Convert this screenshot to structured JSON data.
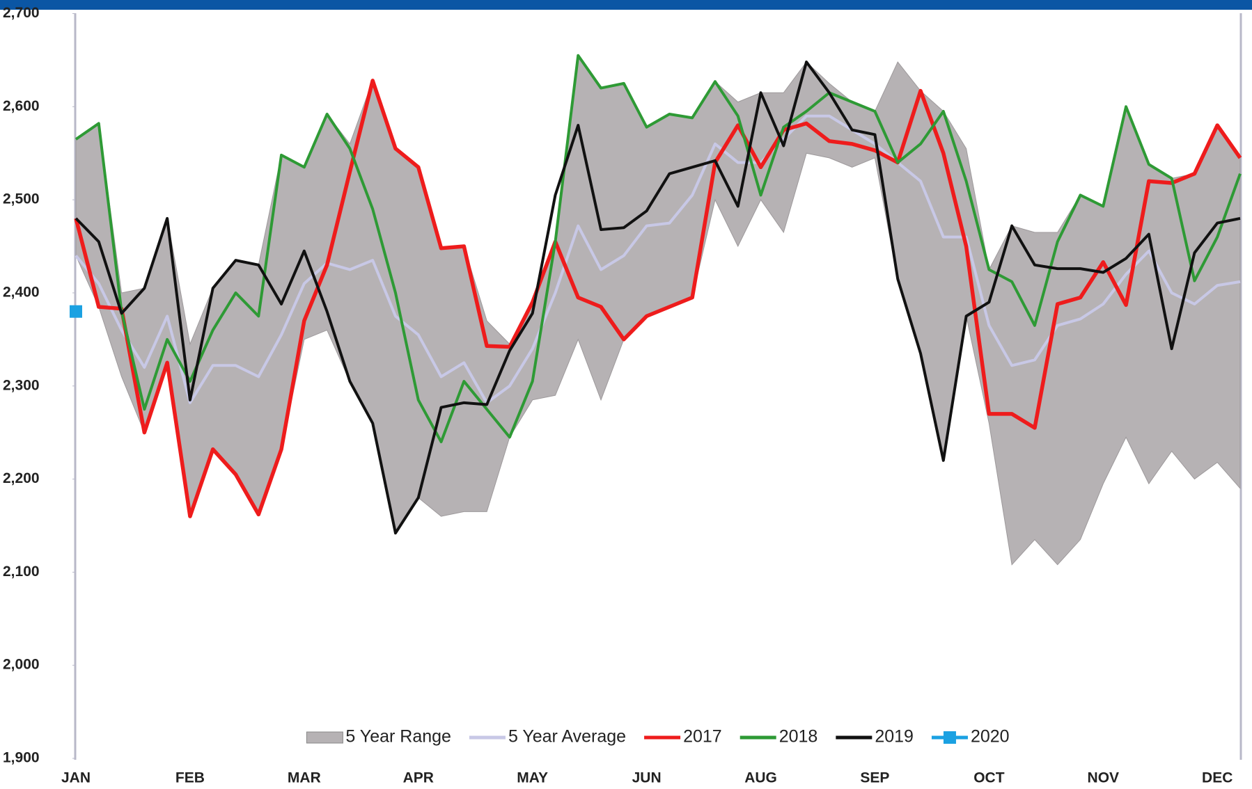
{
  "chart_data": {
    "type": "line",
    "categories": [
      "JAN",
      null,
      null,
      null,
      null,
      "FEB",
      null,
      null,
      null,
      null,
      "MAR",
      null,
      null,
      null,
      null,
      "APR",
      null,
      null,
      null,
      null,
      "MAY",
      null,
      null,
      null,
      null,
      "JUN",
      null,
      null,
      null,
      null,
      "AUG",
      null,
      null,
      null,
      null,
      "SEP",
      null,
      null,
      null,
      null,
      "OCT",
      null,
      null,
      null,
      null,
      "NOV",
      null,
      null,
      null,
      null,
      "DEC",
      null
    ],
    "ylim": [
      1900,
      2700
    ],
    "yticks": [
      {
        "value": 1900,
        "label": "1,900"
      },
      {
        "value": 2000,
        "label": "2,000"
      },
      {
        "value": 2100,
        "label": "2,100"
      },
      {
        "value": 2200,
        "label": "2,200"
      },
      {
        "value": 2300,
        "label": "2,300"
      },
      {
        "value": 2400,
        "label": "2,400"
      },
      {
        "value": 2500,
        "label": "2,500"
      },
      {
        "value": 2600,
        "label": "2,600"
      },
      {
        "value": 2700,
        "label": "2,700"
      }
    ],
    "grid": false,
    "legend": "bottom",
    "series": [
      {
        "name": "5 Year Range",
        "color": "#b6b2b4",
        "type": "range",
        "high": [
          2565,
          2582,
          2400,
          2405,
          2480,
          2345,
          2405,
          2435,
          2430,
          2548,
          2535,
          2592,
          2560,
          2628,
          2555,
          2535,
          2448,
          2450,
          2370,
          2345,
          2390,
          2455,
          2655,
          2620,
          2625,
          2578,
          2592,
          2588,
          2627,
          2605,
          2615,
          2615,
          2648,
          2625,
          2605,
          2595,
          2648,
          2617,
          2595,
          2555,
          2425,
          2472,
          2465,
          2465,
          2505,
          2493,
          2600,
          2538,
          2523,
          2528,
          2580,
          2545
        ],
        "low": [
          2440,
          2385,
          2310,
          2250,
          2325,
          2160,
          2232,
          2205,
          2162,
          2232,
          2350,
          2360,
          2305,
          2260,
          2142,
          2180,
          2160,
          2165,
          2165,
          2245,
          2285,
          2290,
          2350,
          2285,
          2350,
          2375,
          2385,
          2395,
          2500,
          2450,
          2500,
          2465,
          2550,
          2545,
          2535,
          2545,
          2415,
          2335,
          2220,
          2375,
          2260,
          2108,
          2135,
          2108,
          2135,
          2195,
          2245,
          2195,
          2230,
          2200,
          2218,
          2190
        ]
      },
      {
        "name": "5 Year Average",
        "color": "#c8c8e6",
        "values": [
          2440,
          2410,
          2360,
          2320,
          2375,
          2282,
          2322,
          2322,
          2310,
          2355,
          2410,
          2432,
          2425,
          2435,
          2375,
          2355,
          2310,
          2325,
          2282,
          2300,
          2340,
          2400,
          2472,
          2425,
          2440,
          2472,
          2475,
          2505,
          2560,
          2540,
          2540,
          2565,
          2590,
          2590,
          2575,
          2560,
          2540,
          2520,
          2460,
          2460,
          2365,
          2322,
          2328,
          2365,
          2372,
          2388,
          2420,
          2445,
          2400,
          2388,
          2408,
          2412
        ]
      },
      {
        "name": "2017",
        "color": "#ee1c1c",
        "values": [
          2480,
          2385,
          2383,
          2250,
          2325,
          2160,
          2232,
          2205,
          2162,
          2232,
          2370,
          2430,
          2530,
          2628,
          2555,
          2535,
          2448,
          2450,
          2343,
          2342,
          2390,
          2455,
          2395,
          2385,
          2350,
          2375,
          2385,
          2395,
          2540,
          2580,
          2535,
          2575,
          2582,
          2563,
          2560,
          2553,
          2540,
          2617,
          2550,
          2450,
          2270,
          2270,
          2255,
          2388,
          2395,
          2433,
          2387,
          2520,
          2518,
          2528,
          2580,
          2545
        ]
      },
      {
        "name": "2018",
        "color": "#2e9a35",
        "values": [
          2565,
          2582,
          2380,
          2275,
          2350,
          2305,
          2360,
          2400,
          2375,
          2548,
          2535,
          2592,
          2555,
          2490,
          2400,
          2285,
          2240,
          2305,
          2275,
          2245,
          2305,
          2455,
          2655,
          2620,
          2625,
          2578,
          2592,
          2588,
          2627,
          2590,
          2505,
          2578,
          2595,
          2615,
          2605,
          2595,
          2540,
          2560,
          2595,
          2520,
          2425,
          2412,
          2365,
          2455,
          2505,
          2493,
          2600,
          2538,
          2523,
          2413,
          2460,
          2528
        ]
      },
      {
        "name": "2019",
        "color": "#111111",
        "values": [
          2480,
          2455,
          2378,
          2405,
          2480,
          2285,
          2405,
          2435,
          2430,
          2388,
          2445,
          2380,
          2305,
          2260,
          2142,
          2180,
          2277,
          2282,
          2280,
          2338,
          2378,
          2505,
          2580,
          2468,
          2470,
          2488,
          2528,
          2535,
          2542,
          2493,
          2615,
          2558,
          2648,
          2615,
          2575,
          2570,
          2415,
          2335,
          2220,
          2375,
          2390,
          2472,
          2430,
          2426,
          2426,
          2422,
          2437,
          2463,
          2340,
          2443,
          2475,
          2480
        ]
      },
      {
        "name": "2020",
        "color": "#1ba1e2",
        "marker": "square",
        "values": [
          2380,
          null,
          null,
          null,
          null,
          null,
          null,
          null,
          null,
          null,
          null,
          null,
          null,
          null,
          null,
          null,
          null,
          null,
          null,
          null,
          null,
          null,
          null,
          null,
          null,
          null,
          null,
          null,
          null,
          null,
          null,
          null,
          null,
          null,
          null,
          null,
          null,
          null,
          null,
          null,
          null,
          null,
          null,
          null,
          null,
          null,
          null,
          null,
          null,
          null,
          null,
          null
        ]
      }
    ]
  }
}
